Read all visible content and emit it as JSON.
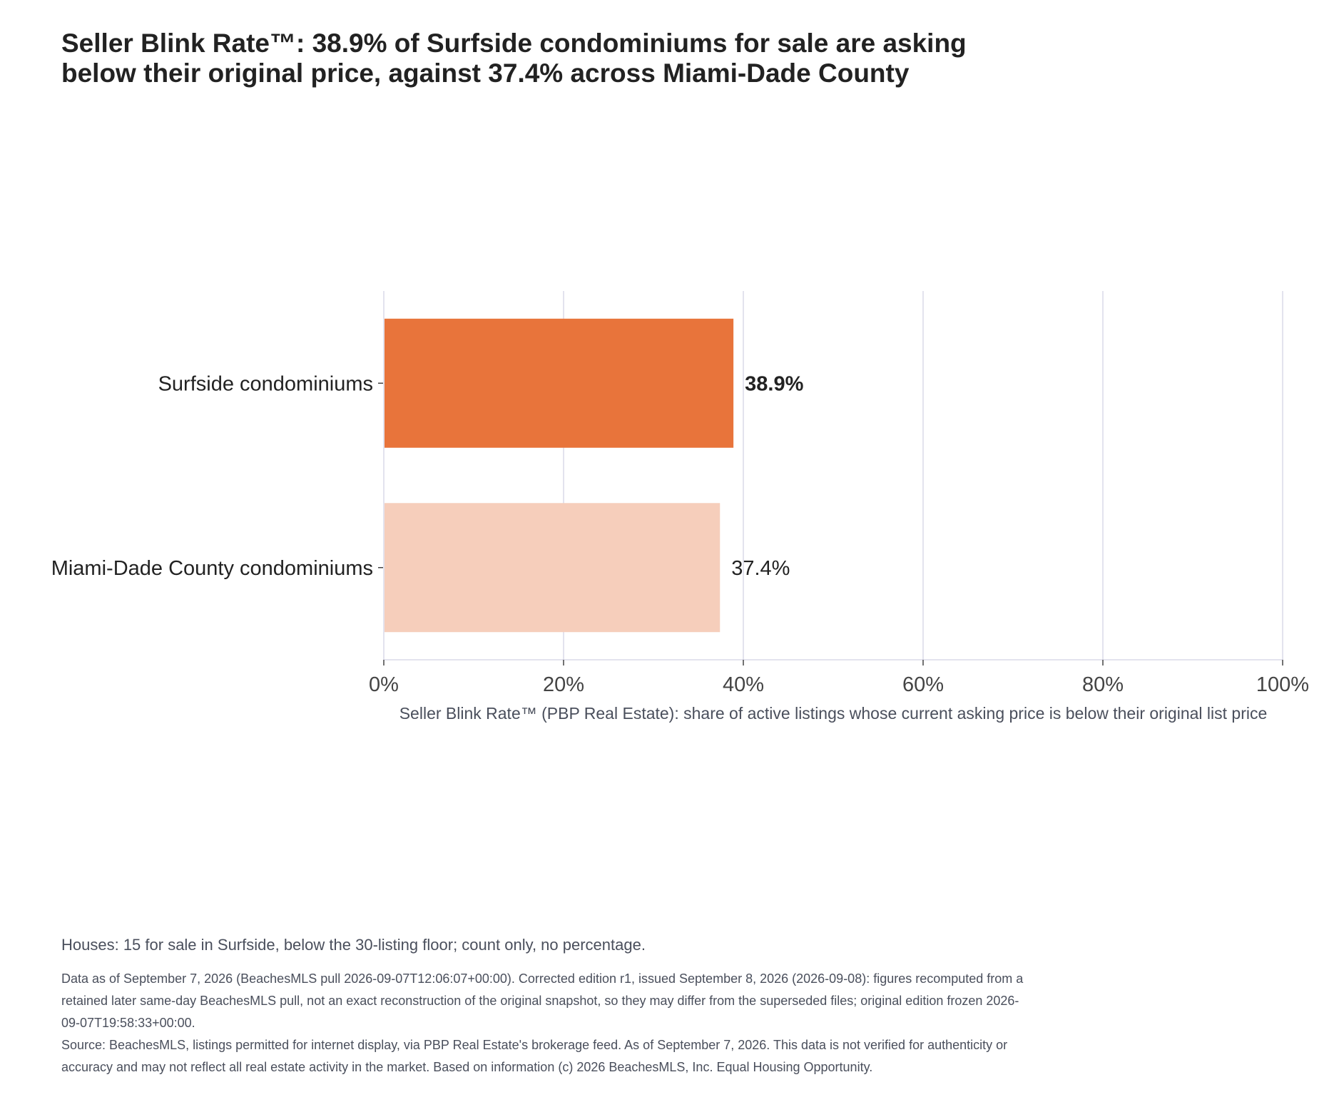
{
  "title": "Seller Blink Rate™: 38.9% of Surfside condominiums for sale are asking below their original price, against 37.4% across Miami-Dade County",
  "chart_data": {
    "type": "bar",
    "orientation": "horizontal",
    "categories": [
      "Surfside condominiums",
      "Miami-Dade County condominiums"
    ],
    "values": [
      38.9,
      37.4
    ],
    "value_labels": [
      "38.9%",
      "37.4%"
    ],
    "value_label_bold": [
      true,
      false
    ],
    "bar_colors": [
      "#e8743b",
      "#f6cebb"
    ],
    "xlim": [
      0,
      100
    ],
    "xticks": [
      0,
      20,
      40,
      60,
      80,
      100
    ],
    "xtick_labels": [
      "0%",
      "20%",
      "40%",
      "60%",
      "80%",
      "100%"
    ],
    "xlabel": "Seller Blink Rate™ (PBP Real Estate): share of active listings whose current asking price is below their original list price",
    "ylabel": "",
    "grid": true,
    "legend": "none"
  },
  "note": "Houses: 15 for sale in Surfside, below the 30-listing floor; count only, no percentage.",
  "footer": {
    "data_note": "Data as of September 7, 2026 (BeachesMLS pull 2026-09-07T12:06:07+00:00). Corrected edition r1, issued September 8, 2026 (2026-09-08): figures recomputed from a retained later same-day BeachesMLS pull, not an exact reconstruction of the original snapshot, so they may differ from the superseded files; original edition frozen 2026-09-07T19:58:33+00:00.",
    "source": "Source: BeachesMLS, listings permitted for internet display, via PBP Real Estate's brokerage feed. As of September 7, 2026. This data is not verified for authenticity or accuracy and may not reflect all real estate activity in the market. Based on information (c) 2026 BeachesMLS, Inc. Equal Housing Opportunity."
  }
}
